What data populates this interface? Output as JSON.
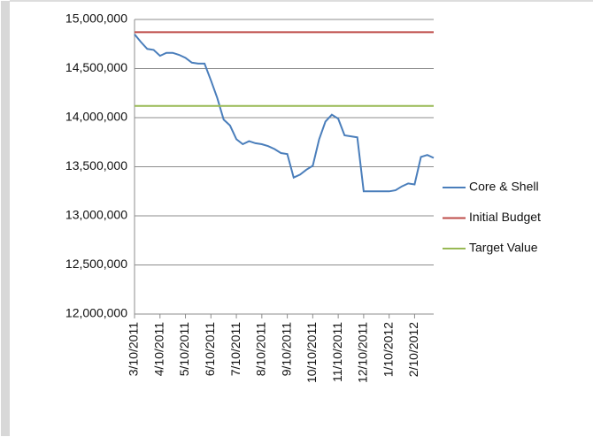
{
  "chart_data": {
    "type": "line",
    "categories": [
      "3/10/2011",
      null,
      null,
      null,
      "4/10/2011",
      null,
      null,
      null,
      "5/10/2011",
      null,
      null,
      null,
      "6/10/2011",
      null,
      null,
      null,
      "7/10/2011",
      null,
      null,
      null,
      "8/10/2011",
      null,
      null,
      null,
      "9/10/2011",
      null,
      null,
      null,
      "10/10/2011",
      null,
      null,
      null,
      "11/10/2011",
      null,
      null,
      null,
      "12/10/2011",
      null,
      null,
      null,
      "1/10/2012",
      null,
      null,
      null,
      "2/10/2012",
      null,
      null,
      null
    ],
    "series": [
      {
        "name": "Core & Shell",
        "color": "#4a7ebb",
        "values": [
          14850000,
          14770000,
          14700000,
          14690000,
          14630000,
          14660000,
          14660000,
          14640000,
          14610000,
          14560000,
          14550000,
          14550000,
          14380000,
          14200000,
          13980000,
          13920000,
          13780000,
          13730000,
          13760000,
          13740000,
          13730000,
          13710000,
          13680000,
          13640000,
          13630000,
          13390000,
          13420000,
          13470000,
          13510000,
          13780000,
          13960000,
          14030000,
          13990000,
          13820000,
          13810000,
          13800000,
          13250000,
          13250000,
          13250000,
          13250000,
          13250000,
          13260000,
          13300000,
          13330000,
          13320000,
          13600000,
          13620000,
          13590000
        ]
      },
      {
        "name": "Initial Budget",
        "color": "#be4b48",
        "values": [
          14870000,
          14870000,
          14870000,
          14870000,
          14870000,
          14870000,
          14870000,
          14870000,
          14870000,
          14870000,
          14870000,
          14870000,
          14870000,
          14870000,
          14870000,
          14870000,
          14870000,
          14870000,
          14870000,
          14870000,
          14870000,
          14870000,
          14870000,
          14870000,
          14870000,
          14870000,
          14870000,
          14870000,
          14870000,
          14870000,
          14870000,
          14870000,
          14870000,
          14870000,
          14870000,
          14870000,
          14870000,
          14870000,
          14870000,
          14870000,
          14870000,
          14870000,
          14870000,
          14870000,
          14870000,
          14870000,
          14870000,
          14870000
        ]
      },
      {
        "name": "Target Value",
        "color": "#98b954",
        "values": [
          14120000,
          14120000,
          14120000,
          14120000,
          14120000,
          14120000,
          14120000,
          14120000,
          14120000,
          14120000,
          14120000,
          14120000,
          14120000,
          14120000,
          14120000,
          14120000,
          14120000,
          14120000,
          14120000,
          14120000,
          14120000,
          14120000,
          14120000,
          14120000,
          14120000,
          14120000,
          14120000,
          14120000,
          14120000,
          14120000,
          14120000,
          14120000,
          14120000,
          14120000,
          14120000,
          14120000,
          14120000,
          14120000,
          14120000,
          14120000,
          14120000,
          14120000,
          14120000,
          14120000,
          14120000,
          14120000,
          14120000,
          14120000
        ]
      }
    ],
    "ylim": [
      12000000,
      15000000
    ],
    "yticks": [
      {
        "value": 12000000,
        "label": "12,000,000"
      },
      {
        "value": 12500000,
        "label": "12,500,000"
      },
      {
        "value": 13000000,
        "label": "13,000,000"
      },
      {
        "value": 13500000,
        "label": "13,500,000"
      },
      {
        "value": 14000000,
        "label": "14,000,000"
      },
      {
        "value": 14500000,
        "label": "14,500,000"
      },
      {
        "value": 15000000,
        "label": "15,000,000"
      }
    ],
    "grid": true,
    "legend": "right"
  }
}
